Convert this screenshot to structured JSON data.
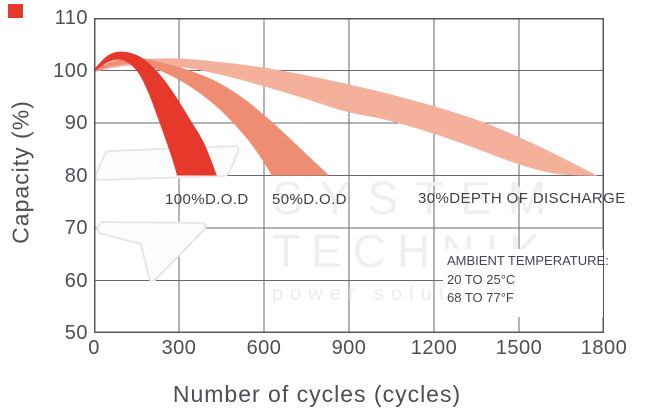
{
  "page": {
    "background": "#ffffff"
  },
  "logo": {
    "name": "red-square-logo",
    "color": "#e6392b"
  },
  "colors": {
    "grid": "#66696d",
    "plot_border": "#55585c",
    "tick_text": "#4a5055",
    "watermark": "#efefef",
    "band_red": "#e6392b",
    "band_salmon": "#ef8d72",
    "band_pink": "#f5b09c"
  },
  "chart_data": {
    "type": "area",
    "title": "",
    "xlabel": "Number of cycles (cycles)",
    "ylabel": "Capacity (%)",
    "xlim": [
      0,
      1800
    ],
    "ylim": [
      50,
      110
    ],
    "x_ticks": [
      0,
      300,
      600,
      900,
      1200,
      1500,
      1800
    ],
    "y_ticks": [
      110,
      100,
      90,
      80,
      70,
      60,
      50
    ],
    "grid": true,
    "legend_position": "in-plot labels",
    "series": [
      {
        "name": "30% depth of discharge",
        "label": "30%DEPTH OF DISCHARGE",
        "color": "#f5b09c",
        "upper": [
          [
            0,
            100.2
          ],
          [
            120,
            101.9
          ],
          [
            280,
            102.3
          ],
          [
            430,
            101.7
          ],
          [
            580,
            100.7
          ],
          [
            730,
            99.3
          ],
          [
            880,
            97.6
          ],
          [
            1030,
            95.7
          ],
          [
            1180,
            93.5
          ],
          [
            1330,
            91.0
          ],
          [
            1480,
            87.8
          ],
          [
            1630,
            84.0
          ],
          [
            1775,
            80.0
          ]
        ],
        "lower": [
          [
            0,
            99.7
          ],
          [
            120,
            100.9
          ],
          [
            280,
            100.8
          ],
          [
            430,
            99.4
          ],
          [
            580,
            97.3
          ],
          [
            730,
            94.9
          ],
          [
            880,
            92.3
          ],
          [
            1030,
            90.6
          ],
          [
            1180,
            88.3
          ],
          [
            1330,
            85.5
          ],
          [
            1480,
            82.5
          ],
          [
            1620,
            80.4
          ],
          [
            1775,
            79.9
          ]
        ]
      },
      {
        "name": "50% D.O.D",
        "label": "50%D.O.D",
        "color": "#ef8d72",
        "upper": [
          [
            0,
            100.2
          ],
          [
            80,
            102.0
          ],
          [
            160,
            102.4
          ],
          [
            240,
            101.5
          ],
          [
            320,
            100.3
          ],
          [
            420,
            98.2
          ],
          [
            520,
            95.0
          ],
          [
            620,
            90.6
          ],
          [
            720,
            85.6
          ],
          [
            830,
            80.0
          ]
        ],
        "lower": [
          [
            0,
            99.7
          ],
          [
            80,
            101.0
          ],
          [
            160,
            101.2
          ],
          [
            240,
            99.8
          ],
          [
            320,
            97.6
          ],
          [
            400,
            94.6
          ],
          [
            470,
            91.2
          ],
          [
            540,
            87.0
          ],
          [
            590,
            83.3
          ],
          [
            628,
            80.0
          ]
        ]
      },
      {
        "name": "100% D.O.D",
        "label": "100%D.O.D",
        "color": "#e6392b",
        "upper": [
          [
            0,
            100.2
          ],
          [
            50,
            102.9
          ],
          [
            100,
            103.6
          ],
          [
            160,
            102.7
          ],
          [
            220,
            100.0
          ],
          [
            280,
            95.8
          ],
          [
            340,
            90.6
          ],
          [
            390,
            86.0
          ],
          [
            434,
            80.0
          ]
        ],
        "lower": [
          [
            0,
            99.7
          ],
          [
            50,
            101.6
          ],
          [
            100,
            102.0
          ],
          [
            150,
            100.0
          ],
          [
            190,
            96.0
          ],
          [
            225,
            91.0
          ],
          [
            258,
            86.0
          ],
          [
            280,
            82.5
          ],
          [
            293,
            80.0
          ]
        ]
      }
    ],
    "annotation": {
      "lines": [
        "AMBIENT TEMPERATURE:",
        "20 TO 25°C",
        "68 TO 77°F"
      ]
    },
    "watermark": {
      "line1": "SYSTEM",
      "line2": "TECHNIK",
      "line3": "power solutions"
    }
  }
}
